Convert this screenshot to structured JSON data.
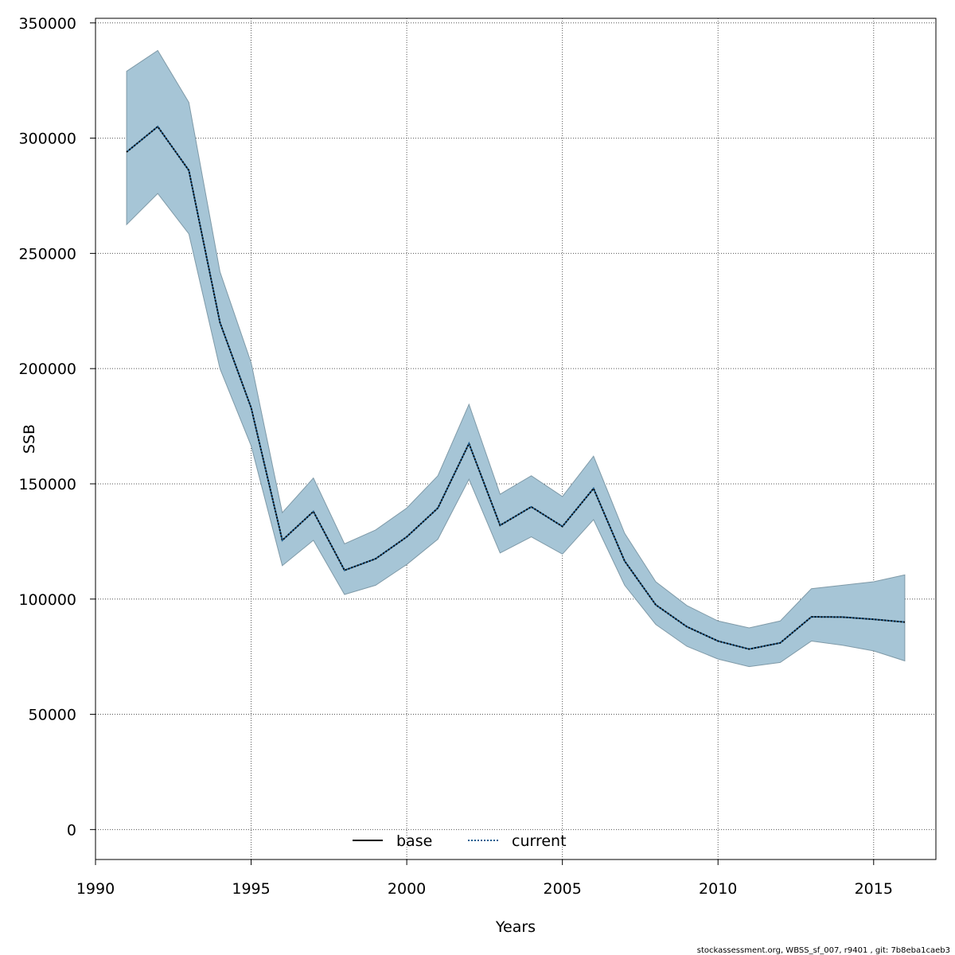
{
  "chart_data": {
    "type": "line",
    "xlabel": "Years",
    "ylabel": "SSB",
    "xlim": [
      1990,
      2017
    ],
    "ylim": [
      -13000,
      352000
    ],
    "x_ticks": [
      "1990",
      "1995",
      "2000",
      "2005",
      "2010",
      "2015"
    ],
    "y_ticks": [
      "0",
      "50000",
      "100000",
      "150000",
      "200000",
      "250000",
      "300000",
      "350000"
    ],
    "grid": true,
    "legend_position": "bottom-center",
    "x": [
      1991,
      1992,
      1993,
      1994,
      1995,
      1996,
      1997,
      1998,
      1999,
      2000,
      2001,
      2002,
      2003,
      2004,
      2005,
      2006,
      2007,
      2008,
      2009,
      2010,
      2011,
      2012,
      2013,
      2014,
      2015,
      2016
    ],
    "series": [
      {
        "name": "base",
        "style": "solid",
        "color": "#000000",
        "values": [
          294000,
          305000,
          286000,
          220000,
          183000,
          125500,
          138000,
          112500,
          117500,
          127000,
          139500,
          167500,
          132000,
          140000,
          131500,
          148000,
          116500,
          97500,
          88000,
          81800,
          78300,
          81000,
          92300,
          92200,
          91200,
          90000
        ]
      },
      {
        "name": "current",
        "style": "dotted",
        "color": "#1f5e8f",
        "values": [
          294000,
          305000,
          286000,
          220000,
          183000,
          125500,
          138000,
          112500,
          117500,
          127000,
          139500,
          167500,
          132000,
          140000,
          131500,
          148000,
          116500,
          97500,
          88000,
          81800,
          78300,
          81000,
          92300,
          92200,
          91200,
          90000
        ]
      }
    ],
    "band": {
      "fill": "#a6c5d6",
      "stroke": "#7f9aa8",
      "lower": [
        262500,
        276000,
        258500,
        200000,
        166500,
        114500,
        125500,
        102000,
        106000,
        115000,
        126000,
        152000,
        120000,
        127000,
        119500,
        134500,
        106000,
        89000,
        79500,
        74000,
        70700,
        72500,
        81800,
        80000,
        77500,
        73200
      ],
      "upper": [
        329000,
        338000,
        315500,
        242000,
        202500,
        137500,
        152500,
        124000,
        130000,
        139500,
        153500,
        184500,
        145500,
        153500,
        144500,
        162000,
        128500,
        107500,
        97200,
        90500,
        87500,
        90500,
        104500,
        106000,
        107500,
        110500
      ]
    }
  },
  "footer": {
    "text": "stockassessment.org, WBSS_sf_007, r9401 , git: 7b8eba1caeb3"
  }
}
